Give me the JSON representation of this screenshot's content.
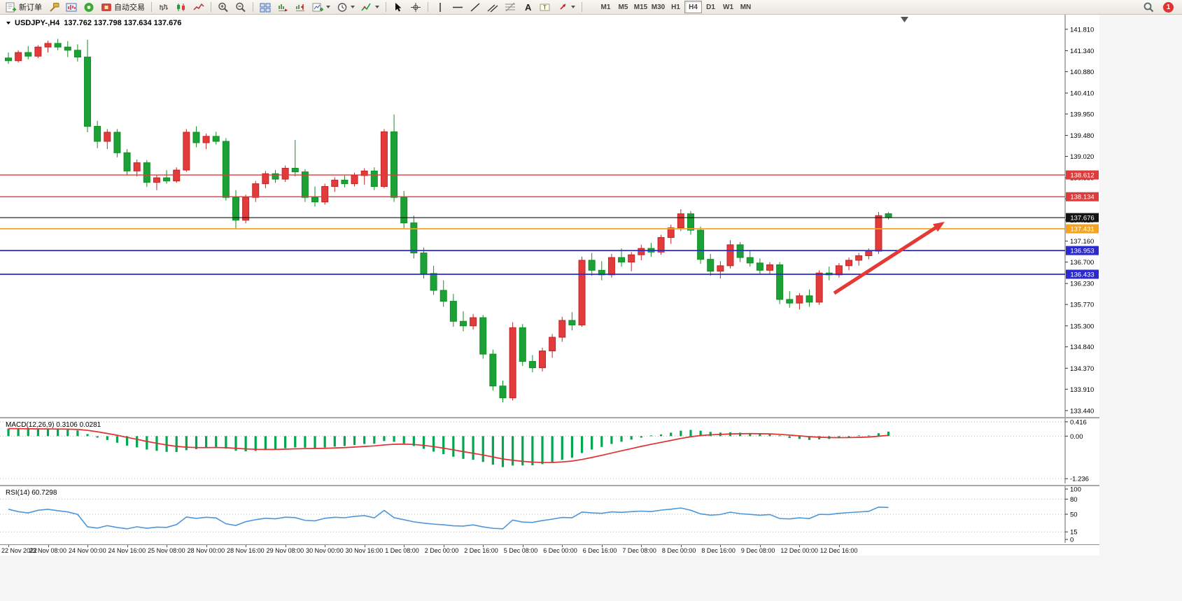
{
  "toolbar": {
    "new_order_label": "新订单",
    "autotrading_label": "自动交易",
    "timeframes": [
      "M1",
      "M5",
      "M15",
      "M30",
      "H1",
      "H4",
      "D1",
      "W1",
      "MN"
    ],
    "active_timeframe": "H4",
    "notification_count": "1"
  },
  "quote": {
    "symbol_period": "USDJPY-,H4",
    "ohlc_text": "137.762 137.798 137.634 137.676"
  },
  "chart_data": {
    "type": "candlestick",
    "symbol": "USDJPY",
    "timeframe": "H4",
    "up_color": "#e23b3b",
    "up_border": "#c22525",
    "down_color": "#1ba135",
    "down_border": "#0e8f22",
    "ylim": [
      133.3,
      142.13
    ],
    "ohlc": [
      [
        141.18,
        141.3,
        141.05,
        141.12
      ],
      [
        141.12,
        141.35,
        141.08,
        141.3
      ],
      [
        141.3,
        141.44,
        141.15,
        141.22
      ],
      [
        141.22,
        141.46,
        141.18,
        141.42
      ],
      [
        141.42,
        141.56,
        141.3,
        141.5
      ],
      [
        141.5,
        141.6,
        141.35,
        141.42
      ],
      [
        141.42,
        141.55,
        141.2,
        141.35
      ],
      [
        141.35,
        141.48,
        141.1,
        141.2
      ],
      [
        141.2,
        141.58,
        139.55,
        139.68
      ],
      [
        139.68,
        139.8,
        139.2,
        139.35
      ],
      [
        139.35,
        139.62,
        139.18,
        139.55
      ],
      [
        139.55,
        139.62,
        139.0,
        139.1
      ],
      [
        139.1,
        139.18,
        138.62,
        138.7
      ],
      [
        138.7,
        138.95,
        138.58,
        138.88
      ],
      [
        138.88,
        138.94,
        138.35,
        138.45
      ],
      [
        138.45,
        138.62,
        138.28,
        138.55
      ],
      [
        138.55,
        138.72,
        138.42,
        138.48
      ],
      [
        138.48,
        138.78,
        138.44,
        138.72
      ],
      [
        138.72,
        139.62,
        138.68,
        139.55
      ],
      [
        139.55,
        139.68,
        139.22,
        139.32
      ],
      [
        139.32,
        139.52,
        139.18,
        139.46
      ],
      [
        139.46,
        139.56,
        139.28,
        139.35
      ],
      [
        139.35,
        139.42,
        138.05,
        138.12
      ],
      [
        138.12,
        138.28,
        137.42,
        137.62
      ],
      [
        137.62,
        138.18,
        137.55,
        138.12
      ],
      [
        138.12,
        138.48,
        138.02,
        138.42
      ],
      [
        138.42,
        138.7,
        138.32,
        138.64
      ],
      [
        138.64,
        138.72,
        138.44,
        138.52
      ],
      [
        138.52,
        138.82,
        138.46,
        138.76
      ],
      [
        138.76,
        139.38,
        138.58,
        138.68
      ],
      [
        138.68,
        138.74,
        138.02,
        138.12
      ],
      [
        138.12,
        138.36,
        137.92,
        138.02
      ],
      [
        138.02,
        138.42,
        137.96,
        138.36
      ],
      [
        138.36,
        138.56,
        138.24,
        138.5
      ],
      [
        138.5,
        138.6,
        138.34,
        138.42
      ],
      [
        138.42,
        138.66,
        138.36,
        138.6
      ],
      [
        138.6,
        138.76,
        138.4,
        138.7
      ],
      [
        138.7,
        138.78,
        138.28,
        138.36
      ],
      [
        138.36,
        139.62,
        138.32,
        139.56
      ],
      [
        139.56,
        139.94,
        138.02,
        138.12
      ],
      [
        138.12,
        138.26,
        137.44,
        137.56
      ],
      [
        137.56,
        137.72,
        136.78,
        136.9
      ],
      [
        136.9,
        137.02,
        136.34,
        136.45
      ],
      [
        136.45,
        136.62,
        135.98,
        136.08
      ],
      [
        136.08,
        136.3,
        135.72,
        135.84
      ],
      [
        135.84,
        136.0,
        135.28,
        135.4
      ],
      [
        135.4,
        135.62,
        135.18,
        135.3
      ],
      [
        135.3,
        135.56,
        135.22,
        135.48
      ],
      [
        135.48,
        135.54,
        134.58,
        134.68
      ],
      [
        134.68,
        134.78,
        133.88,
        133.98
      ],
      [
        133.98,
        134.1,
        133.62,
        133.72
      ],
      [
        133.72,
        135.38,
        133.66,
        135.26
      ],
      [
        135.26,
        135.34,
        134.42,
        134.52
      ],
      [
        134.52,
        134.66,
        134.28,
        134.38
      ],
      [
        134.38,
        134.82,
        134.3,
        134.75
      ],
      [
        134.75,
        135.12,
        134.6,
        135.05
      ],
      [
        135.05,
        135.5,
        134.95,
        135.42
      ],
      [
        135.42,
        135.6,
        135.2,
        135.32
      ],
      [
        135.32,
        136.82,
        135.28,
        136.74
      ],
      [
        136.74,
        136.9,
        136.4,
        136.52
      ],
      [
        136.52,
        136.72,
        136.3,
        136.42
      ],
      [
        136.42,
        136.88,
        136.36,
        136.8
      ],
      [
        136.8,
        137.0,
        136.6,
        136.7
      ],
      [
        136.7,
        136.92,
        136.5,
        136.86
      ],
      [
        136.86,
        137.08,
        136.74,
        137.0
      ],
      [
        137.0,
        137.12,
        136.82,
        136.92
      ],
      [
        136.92,
        137.3,
        136.86,
        137.24
      ],
      [
        137.24,
        137.52,
        137.1,
        137.45
      ],
      [
        137.45,
        137.86,
        137.38,
        137.76
      ],
      [
        137.76,
        137.82,
        137.3,
        137.4
      ],
      [
        137.4,
        137.48,
        136.66,
        136.76
      ],
      [
        136.76,
        136.88,
        136.4,
        136.5
      ],
      [
        136.5,
        136.72,
        136.34,
        136.62
      ],
      [
        136.62,
        137.18,
        136.56,
        137.08
      ],
      [
        137.08,
        137.14,
        136.7,
        136.8
      ],
      [
        136.8,
        136.96,
        136.6,
        136.68
      ],
      [
        136.68,
        136.78,
        136.42,
        136.52
      ],
      [
        136.52,
        136.7,
        136.44,
        136.64
      ],
      [
        136.64,
        136.7,
        135.78,
        135.88
      ],
      [
        135.88,
        136.06,
        135.7,
        135.8
      ],
      [
        135.8,
        136.02,
        135.66,
        135.96
      ],
      [
        135.96,
        136.1,
        135.72,
        135.82
      ],
      [
        135.82,
        136.52,
        135.76,
        136.46
      ],
      [
        136.46,
        136.6,
        136.3,
        136.42
      ],
      [
        136.42,
        136.68,
        136.36,
        136.62
      ],
      [
        136.62,
        136.8,
        136.52,
        136.74
      ],
      [
        136.74,
        136.9,
        136.62,
        136.84
      ],
      [
        136.84,
        137.0,
        136.76,
        136.94
      ],
      [
        136.94,
        137.8,
        136.88,
        137.72
      ],
      [
        137.762,
        137.798,
        137.634,
        137.676
      ]
    ],
    "hlines": [
      {
        "label": "138.612",
        "value": 138.612,
        "color": "#e03a3a",
        "width": 1.4
      },
      {
        "label": "138.134",
        "value": 138.134,
        "color": "#e03a3a",
        "width": 1.4
      },
      {
        "label": "137.676",
        "value": 137.676,
        "color": "#141414",
        "width": 1.1
      },
      {
        "label": "137.431",
        "value": 137.431,
        "color": "#f6a41d",
        "width": 1.8
      },
      {
        "label": "136.953",
        "value": 136.953,
        "color": "#2a2ace",
        "width": 1.8
      },
      {
        "label": "136.433",
        "value": 136.433,
        "color": "#2a2ace",
        "width": 1.8
      }
    ],
    "annotation_arrow": {
      "from": [
        1192,
        398
      ],
      "to": [
        1350,
        296
      ],
      "color": "#e53935"
    }
  },
  "price_axis": {
    "labels": [
      "141.810",
      "141.340",
      "140.880",
      "140.410",
      "139.950",
      "139.480",
      "139.020",
      "138.550",
      "138.090",
      "137.620",
      "137.160",
      "136.700",
      "136.230",
      "135.770",
      "135.300",
      "134.840",
      "134.370",
      "133.910",
      "133.440"
    ]
  },
  "macd": {
    "title": "MACD(12,26,9)",
    "values": "0.3106 0.0281",
    "histogram_color": "#00a650",
    "signal_color": "#e03030",
    "axis": [
      {
        "label": "0.416",
        "value": 0.416
      },
      {
        "label": "0.00",
        "value": 0
      },
      {
        "label": "-1.236",
        "value": -1.236
      }
    ]
  },
  "rsi": {
    "title": "RSI(14)",
    "value": "60.7298",
    "line_color": "#4d96d9",
    "levels": [
      80,
      50,
      15
    ],
    "axis": [
      {
        "label": "100",
        "value": 100
      },
      {
        "label": "80",
        "value": 80
      },
      {
        "label": "50",
        "value": 50
      },
      {
        "label": "15",
        "value": 15
      },
      {
        "label": "0",
        "value": 0
      }
    ]
  },
  "time_axis": {
    "labels": [
      "22 Nov 2022",
      "23 Nov 08:00",
      "24 Nov 00:00",
      "24 Nov 16:00",
      "25 Nov 08:00",
      "28 Nov 00:00",
      "28 Nov 16:00",
      "29 Nov 08:00",
      "30 Nov 00:00",
      "30 Nov 16:00",
      "1 Dec 08:00",
      "2 Dec 00:00",
      "2 Dec 16:00",
      "5 Dec 08:00",
      "6 Dec 00:00",
      "6 Dec 16:00",
      "7 Dec 08:00",
      "8 Dec 00:00",
      "8 Dec 16:00",
      "9 Dec 08:00",
      "12 Dec 00:00",
      "12 Dec 16:00"
    ]
  }
}
